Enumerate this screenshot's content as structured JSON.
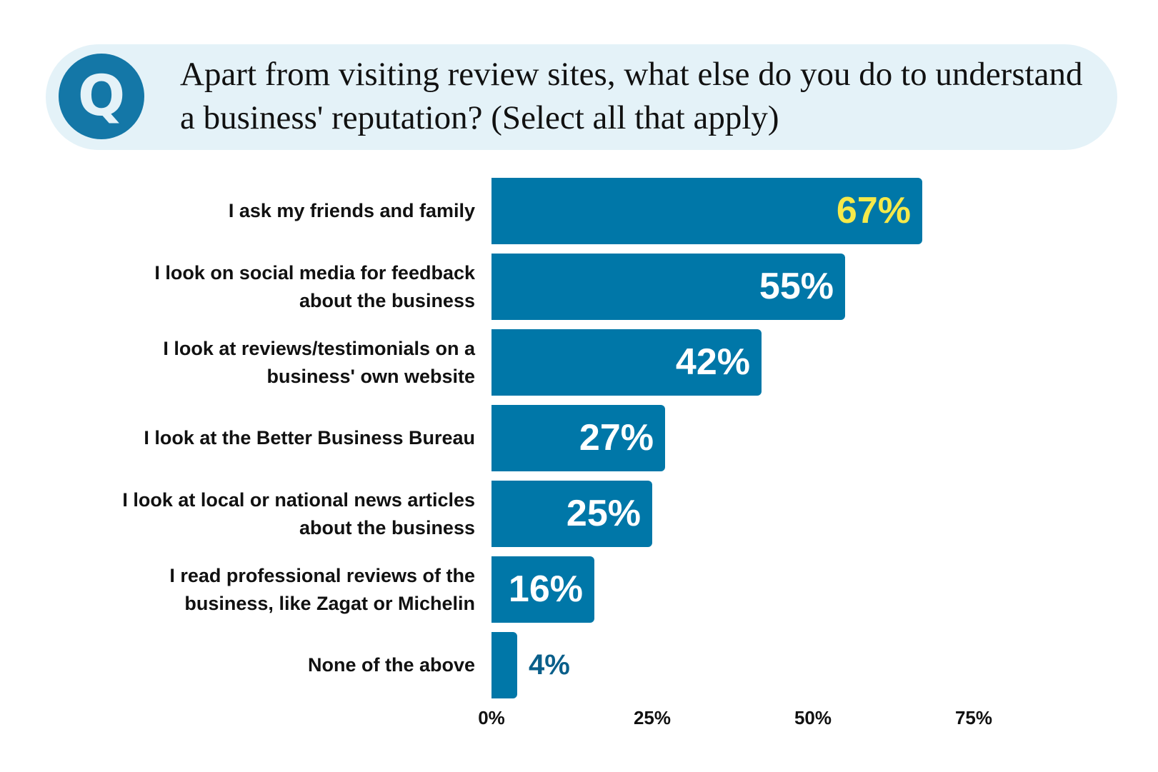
{
  "header": {
    "icon_letter": "Q",
    "question": "Apart from visiting review sites, what else do you do to understand a business' reputation? (Select all that apply)"
  },
  "colors": {
    "bar": "#0077a8",
    "highlight_label": "#f5e94a",
    "outside_label": "#0a5f8a",
    "header_bg": "#e4f2f8"
  },
  "chart_data": {
    "type": "bar",
    "orientation": "horizontal",
    "title": "Apart from visiting review sites, what else do you do to understand a business' reputation? (Select all that apply)",
    "categories": [
      "I ask my friends and family",
      "I look on social media for feedback about the business",
      "I look at reviews/testimonials on a business' own website",
      "I look at the Better Business Bureau",
      "I look at local or national news articles about the business",
      "I read professional reviews of the business, like Zagat or Michelin",
      "None of the above"
    ],
    "values": [
      67,
      55,
      42,
      27,
      25,
      16,
      4
    ],
    "value_labels": [
      "67%",
      "55%",
      "42%",
      "27%",
      "25%",
      "16%",
      "4%"
    ],
    "xlim": [
      0,
      75
    ],
    "xticks": [
      "0%",
      "25%",
      "50%",
      "75%"
    ],
    "xtick_values": [
      0,
      25,
      50,
      75
    ],
    "grid": false,
    "xlabel": "",
    "ylabel": ""
  }
}
